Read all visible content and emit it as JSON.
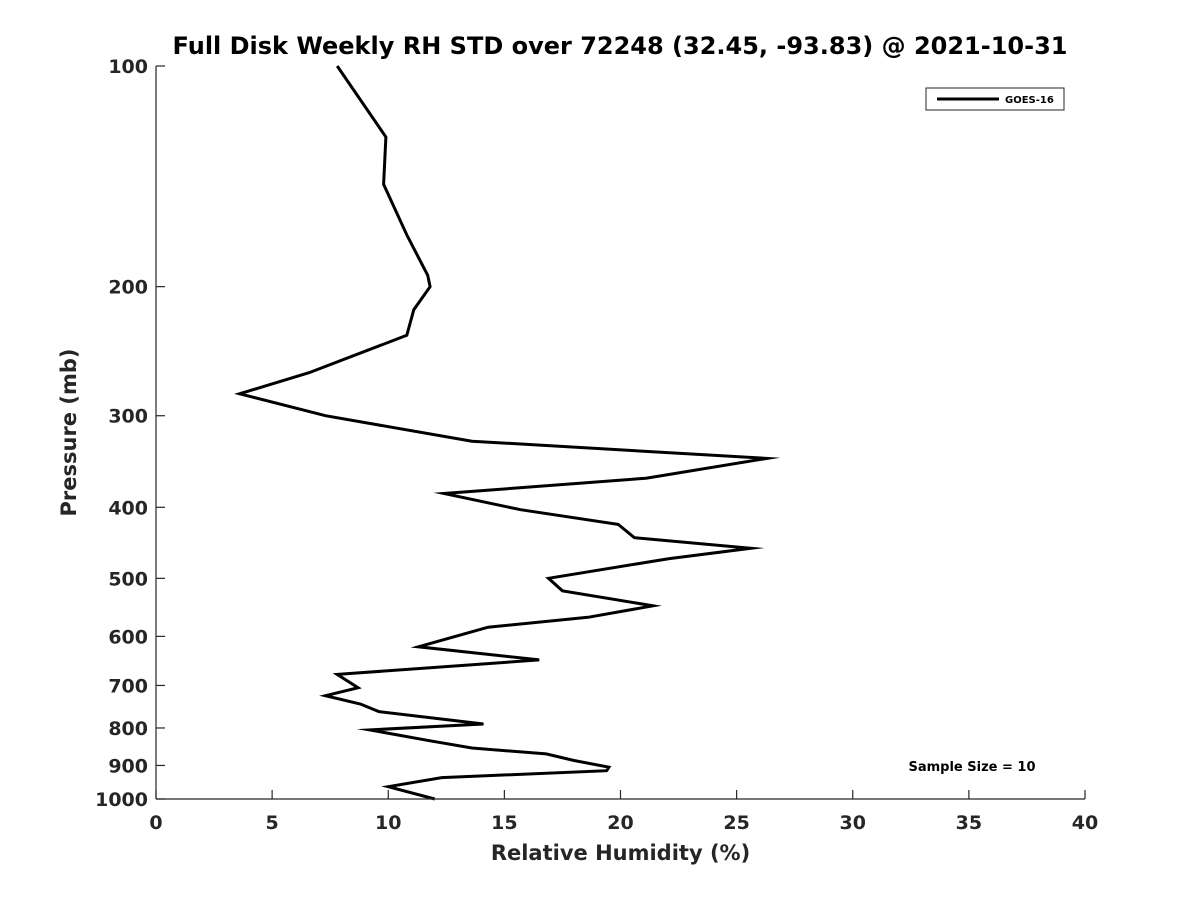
{
  "chart_data": {
    "type": "line",
    "title": "Full Disk Weekly RH STD over 72248 (32.45, -93.83) @ 2021-10-31",
    "xlabel": "Relative Humidity (%)",
    "ylabel": "Pressure (mb)",
    "xlim": [
      0,
      40
    ],
    "ylim": [
      1000,
      100
    ],
    "yscale": "log",
    "y_inverted": true,
    "grid": false,
    "legend_position": "top-right",
    "x_ticks": [
      0,
      5,
      10,
      15,
      20,
      25,
      30,
      35,
      40
    ],
    "x_tick_labels": [
      "0",
      "5",
      "10",
      "15",
      "20",
      "25",
      "30",
      "35",
      "40"
    ],
    "y_ticks": [
      100,
      200,
      300,
      400,
      500,
      600,
      700,
      800,
      900,
      1000
    ],
    "y_tick_labels": [
      "100",
      "200",
      "300",
      "400",
      "500",
      "600",
      "700",
      "800",
      "900",
      "1000"
    ],
    "series": [
      {
        "name": "GOES-16",
        "color": "#000000",
        "x": [
          7.8,
          9.9,
          9.8,
          10.8,
          11.7,
          11.8,
          11.1,
          10.8,
          6.6,
          3.6,
          7.3,
          13.6,
          26.3,
          21.1,
          12.4,
          15.7,
          19.9,
          20.6,
          25.6,
          22.1,
          16.9,
          17.5,
          21.4,
          18.6,
          14.3,
          11.3,
          16.5,
          7.8,
          8.7,
          7.3,
          8.8,
          9.6,
          14.1,
          9.2,
          11.8,
          13.6,
          16.8,
          18.0,
          19.5,
          19.4,
          12.3,
          10.0,
          12.0
        ],
        "y": [
          100,
          125,
          145,
          170,
          193,
          200,
          215,
          233,
          262,
          280,
          300,
          325,
          343,
          365,
          383,
          403,
          422,
          440,
          455,
          470,
          500,
          520,
          545,
          565,
          583,
          620,
          646,
          676,
          705,
          723,
          742,
          760,
          790,
          805,
          833,
          852,
          868,
          886,
          905,
          915,
          935,
          962,
          1000
        ]
      }
    ],
    "annotations": [
      "Sample Size = 10"
    ]
  }
}
